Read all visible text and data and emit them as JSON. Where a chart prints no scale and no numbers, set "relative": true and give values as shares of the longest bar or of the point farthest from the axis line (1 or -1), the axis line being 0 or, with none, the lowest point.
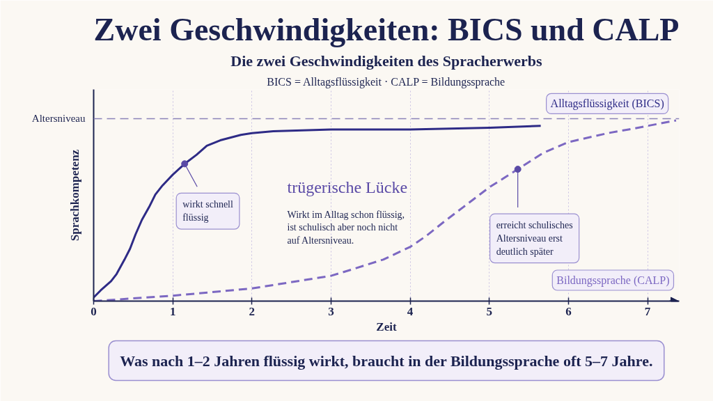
{
  "chart_data": {
    "type": "line",
    "title": "Zwei Geschwindigkeiten: BICS und CALP",
    "subtitle": "Die zwei Geschwindigkeiten des Spracherwerbs",
    "xlabel": "Zeit",
    "ylabel": "Sprachkompetenz",
    "relative": true,
    "xlim": [
      0,
      7.4
    ],
    "xticks": [
      0,
      1,
      2,
      3,
      4,
      5,
      6,
      7
    ],
    "grid": "x",
    "series": [
      {
        "name": "Alltagsflüssigkeit (BICS)",
        "color": "#2e2b86",
        "line_style": "solid",
        "x": [
          0,
          0.09,
          0.22,
          0.29,
          0.39,
          0.46,
          0.53,
          0.61,
          0.7,
          0.78,
          0.87,
          1.0,
          1.15,
          1.3,
          1.43,
          1.6,
          1.86,
          2.0,
          2.27,
          3.0,
          4.0,
          5.0,
          5.65
        ],
        "values": [
          0.02,
          0.06,
          0.11,
          0.15,
          0.23,
          0.29,
          0.37,
          0.45,
          0.52,
          0.59,
          0.64,
          0.7,
          0.76,
          0.81,
          0.86,
          0.89,
          0.92,
          0.93,
          0.94,
          0.95,
          0.95,
          0.96,
          0.97
        ]
      },
      {
        "name": "Bildungssprache (CALP)",
        "color": "#7c68c2",
        "line_style": "dashed",
        "x": [
          0,
          1,
          2,
          3,
          3.3,
          3.66,
          4,
          4.2,
          4.43,
          4.67,
          5,
          5.36,
          5.68,
          6,
          6.5,
          6.76,
          7.36
        ],
        "values": [
          0,
          0.03,
          0.07,
          0.14,
          0.18,
          0.23,
          0.3,
          0.36,
          0.44,
          0.52,
          0.63,
          0.73,
          0.82,
          0.88,
          0.93,
          0.95,
          1.0
        ]
      }
    ],
    "ref_lines": [
      {
        "axis": "y",
        "value": 1.01,
        "label": "Altersniveau",
        "color": "#8b82b8",
        "line_style": "dashed"
      }
    ],
    "annotations": [
      "BICS = Alltagsflüssigkeit · CALP = Bildungssprache",
      {
        "text": "wirkt schnell flüssig",
        "x": 1.15,
        "y": 0.76
      },
      "trügerische Lücke",
      "Wirkt im Alltag schon flüssig, ist schulisch aber noch nicht auf Altersniveau.",
      {
        "text": "erreicht schulisches Altersniveau erst deutlich später",
        "x": 5.36,
        "y": 0.73
      },
      "Was nach 1–2 Jahren flüssig wirkt, braucht in der Bildungssprache oft 5–7 Jahre."
    ]
  }
}
